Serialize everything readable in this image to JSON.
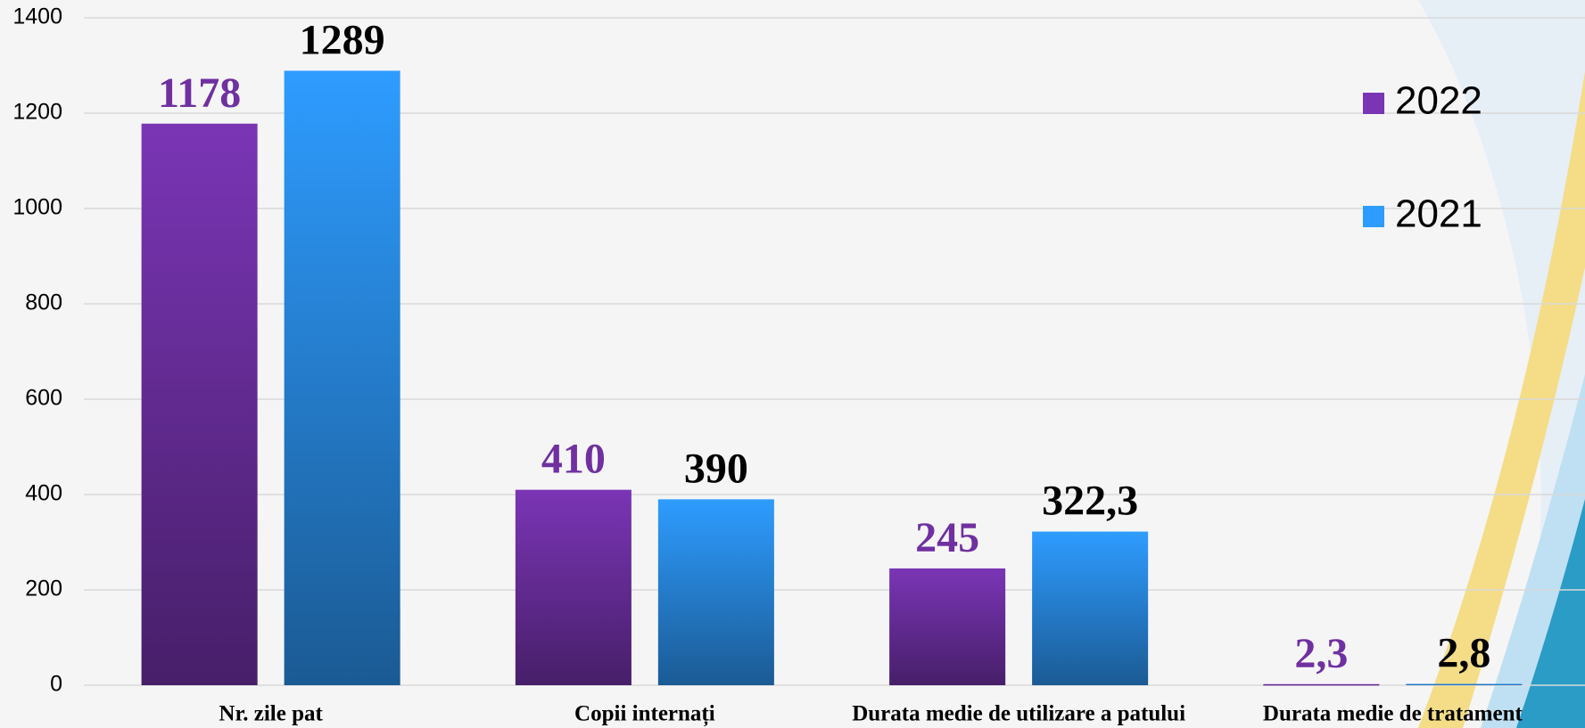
{
  "chart_data": {
    "type": "bar",
    "categories": [
      "Nr. zile pat",
      "Copii internați",
      "Durata medie de utilizare a patului",
      "Durata medie de tratament"
    ],
    "series": [
      {
        "name": "2022",
        "color": "#7a35b5",
        "label_color": "#7030a0",
        "values": [
          1178,
          410,
          245,
          2.3
        ],
        "value_labels": [
          "1178",
          "410",
          "245",
          "2,3"
        ]
      },
      {
        "name": "2021",
        "color": "#2e9cff",
        "label_color": "#000000",
        "values": [
          1289,
          390,
          322.3,
          2.8
        ],
        "value_labels": [
          "1289",
          "390",
          "322,3",
          "2,8"
        ]
      }
    ],
    "ylim": [
      0,
      1400
    ],
    "yticks": [
      0,
      200,
      400,
      600,
      800,
      1000,
      1200,
      1400
    ],
    "grid": true,
    "legend": "top-right"
  }
}
